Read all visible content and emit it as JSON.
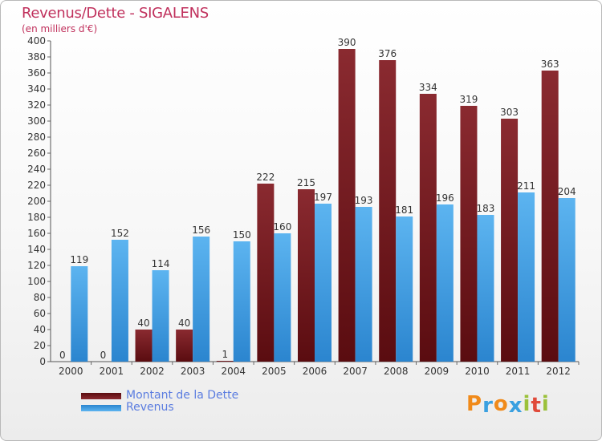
{
  "chart_data": {
    "type": "bar",
    "title": "Revenus/Dette - SIGALENS",
    "subtitle": "(en milliers d'€)",
    "categories": [
      "2000",
      "2001",
      "2002",
      "2003",
      "2004",
      "2005",
      "2006",
      "2007",
      "2008",
      "2009",
      "2010",
      "2011",
      "2012"
    ],
    "series": [
      {
        "name": "Montant de la Dette",
        "color": "#7b1c22",
        "values": [
          0,
          0,
          40,
          40,
          1,
          222,
          215,
          390,
          376,
          334,
          319,
          303,
          363
        ]
      },
      {
        "name": "Revenus",
        "color": "#3f9fe3",
        "values": [
          119,
          152,
          114,
          156,
          150,
          160,
          197,
          193,
          181,
          196,
          183,
          211,
          204
        ]
      }
    ],
    "ylim": [
      0,
      400
    ],
    "ytick_step": 20,
    "grid": false,
    "legend_position": "bottom-left"
  },
  "logo": {
    "text": "Proxiti",
    "letter_colors": [
      "#f08a1a",
      "#3aa0e0",
      "#f08a1a",
      "#3aa0e0",
      "#9bc13a",
      "#e04a3a",
      "#9bc13a"
    ]
  }
}
